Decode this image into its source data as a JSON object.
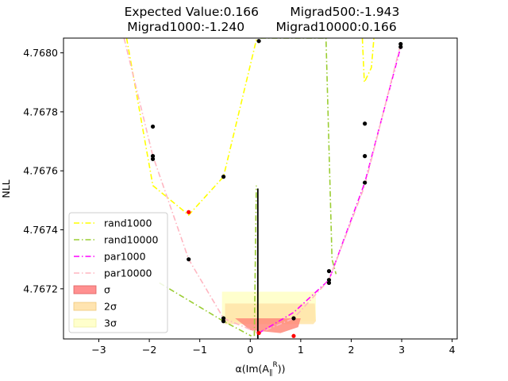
{
  "chart_data": {
    "type": "line",
    "title_line1": "Expected Value:0.166        Migrad500:-1.943",
    "title_line2": "Migrad1000:-1.240        Migrad10000:0.166",
    "xlabel": "α(Im(A∥R))",
    "xlabel_main": "α(Im(A",
    "xlabel_sub": "∥",
    "xlabel_sup": "R",
    "xlabel_end": "))",
    "ylabel": "NLL",
    "xlim": [
      -3.7,
      4.1
    ],
    "ylim": [
      4.76703,
      4.76805
    ],
    "x_ticks": [
      {
        "v": -3,
        "label": "−3"
      },
      {
        "v": -2,
        "label": "−2"
      },
      {
        "v": -1,
        "label": "−1"
      },
      {
        "v": 0,
        "label": "0"
      },
      {
        "v": 1,
        "label": "1"
      },
      {
        "v": 2,
        "label": "2"
      },
      {
        "v": 3,
        "label": "3"
      },
      {
        "v": 4,
        "label": "4"
      }
    ],
    "y_ticks": [
      {
        "v": 4.7672,
        "label": "4.7672"
      },
      {
        "v": 4.7674,
        "label": "4.7674"
      },
      {
        "v": 4.7676,
        "label": "4.7676"
      },
      {
        "v": 4.7678,
        "label": "4.7678"
      },
      {
        "v": 4.768,
        "label": "4.7680"
      }
    ],
    "bands": [
      {
        "name": "3σ",
        "color": "#ffffc8",
        "opacity": 0.9,
        "pts": [
          [
            -0.56,
            4.76709
          ],
          [
            -0.56,
            4.76719
          ],
          [
            1.3,
            4.76719
          ],
          [
            1.3,
            4.76709
          ]
        ]
      },
      {
        "name": "2σ",
        "color": "#ffe4a8",
        "opacity": 0.85,
        "pts": [
          [
            -0.5,
            4.76708
          ],
          [
            -0.5,
            4.76715
          ],
          [
            1.28,
            4.76715
          ],
          [
            1.3,
            4.76709
          ],
          [
            1.25,
            4.76708
          ]
        ]
      },
      {
        "name": "σ",
        "color": "#ff8a7a",
        "opacity": 0.85,
        "pts": [
          [
            -0.3,
            4.7671
          ],
          [
            0.0,
            4.76706
          ],
          [
            0.6,
            4.76705
          ],
          [
            0.95,
            4.76707
          ],
          [
            1.0,
            4.7671
          ]
        ]
      }
    ],
    "series": [
      {
        "name": "rand1000",
        "color": "#ffff00",
        "dash": "7,3,1.5,3",
        "segments": [
          [
            [
              -2.45,
              4.76805
            ],
            [
              -1.93,
              4.76755
            ],
            [
              -1.22,
              4.76745
            ],
            [
              -0.53,
              4.76758
            ],
            [
              0.13,
              4.76805
            ]
          ],
          [
            [
              2.22,
              4.76805
            ],
            [
              2.26,
              4.7679
            ],
            [
              2.4,
              4.76795
            ],
            [
              2.45,
              4.76805
            ]
          ]
        ]
      },
      {
        "name": "rand10000",
        "color": "#9acd32",
        "dash": "7,3,1.5,3",
        "segments": [
          [
            [
              -1.8,
              4.76722
            ],
            [
              -0.53,
              4.76709
            ],
            [
              0.02,
              4.76704
            ]
          ],
          [
            [
              0.08,
              4.76704
            ],
            [
              0.12,
              4.76755
            ]
          ],
          [
            [
              0.2,
              4.76805
            ],
            [
              1.5,
              4.76805
            ],
            [
              1.62,
              4.7673
            ],
            [
              1.7,
              4.76725
            ]
          ]
        ]
      },
      {
        "name": "par1000",
        "color": "#ff00ff",
        "dash": "7,3,1.5,3",
        "segments": [
          [
            [
              0.17,
              4.76705
            ],
            [
              0.86,
              4.76712
            ],
            [
              1.56,
              4.76723
            ],
            [
              2.27,
              4.76756
            ],
            [
              2.98,
              4.76802
            ]
          ]
        ]
      },
      {
        "name": "par10000",
        "color": "#ffb6c1",
        "dash": "7,3,1.5,3",
        "segments": [
          [
            [
              -2.5,
              4.76805
            ],
            [
              -1.93,
              4.76765
            ],
            [
              -1.22,
              4.7673
            ],
            [
              -0.53,
              4.7671
            ],
            [
              0.17,
              4.76705
            ],
            [
              0.86,
              4.7671
            ],
            [
              1.56,
              4.76723
            ],
            [
              2.27,
              4.76755
            ],
            [
              2.98,
              4.76803
            ]
          ]
        ]
      }
    ],
    "black_points": [
      [
        -1.93,
        4.76775
      ],
      [
        -1.93,
        4.76765
      ],
      [
        -1.93,
        4.76764
      ],
      [
        -1.22,
        4.7673
      ],
      [
        -0.53,
        4.76758
      ],
      [
        -0.53,
        4.7671
      ],
      [
        -0.53,
        4.76709
      ],
      [
        0.17,
        4.76804
      ],
      [
        0.86,
        4.7671
      ],
      [
        1.56,
        4.76726
      ],
      [
        1.56,
        4.76723
      ],
      [
        1.56,
        4.76722
      ],
      [
        2.27,
        4.76776
      ],
      [
        2.27,
        4.76765
      ],
      [
        2.27,
        4.76756
      ],
      [
        2.98,
        4.76803
      ],
      [
        2.98,
        4.76802
      ]
    ],
    "red_points": [
      [
        -1.22,
        4.76746
      ],
      [
        0.17,
        4.76705
      ],
      [
        0.86,
        4.76704
      ]
    ],
    "vline": {
      "x": 0.15,
      "y0": 4.76703,
      "y1": 4.76754,
      "color": "#000000"
    },
    "legend": {
      "position": "lower-left",
      "entries": [
        {
          "label": "rand1000",
          "kind": "line",
          "color": "#ffff00"
        },
        {
          "label": "rand10000",
          "kind": "line",
          "color": "#9acd32"
        },
        {
          "label": "par1000",
          "kind": "line",
          "color": "#ff00ff"
        },
        {
          "label": "par10000",
          "kind": "line",
          "color": "#ffb6c1"
        },
        {
          "label": "σ",
          "kind": "patch",
          "color": "#ff9090",
          "edge": "#e06060"
        },
        {
          "label": "2σ",
          "kind": "patch",
          "color": "#ffe4b0",
          "edge": "#f0c878"
        },
        {
          "label": "3σ",
          "kind": "patch",
          "color": "#ffffcc",
          "edge": "#f0f0a0"
        }
      ]
    }
  }
}
